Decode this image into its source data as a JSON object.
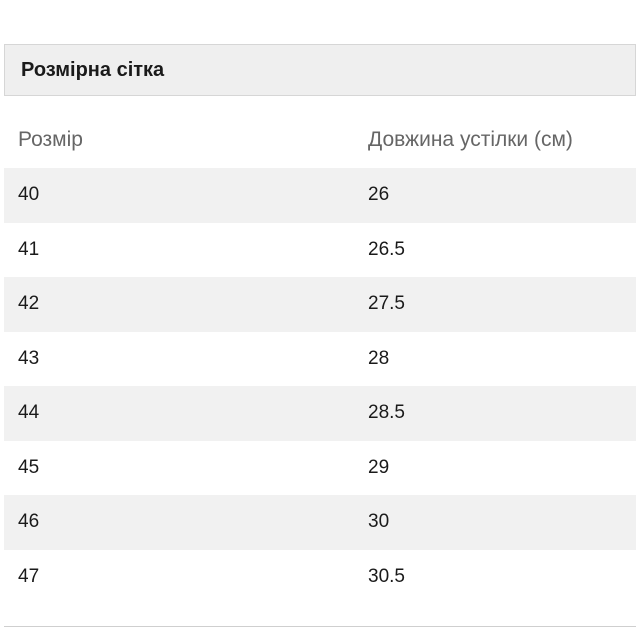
{
  "panel": {
    "title": "Розмірна сітка"
  },
  "table": {
    "headers": [
      "Розмір",
      "Довжина устілки (см)"
    ],
    "rows": [
      [
        "40",
        "26"
      ],
      [
        "41",
        "26.5"
      ],
      [
        "42",
        "27.5"
      ],
      [
        "43",
        "28"
      ],
      [
        "44",
        "28.5"
      ],
      [
        "45",
        "29"
      ],
      [
        "46",
        "30"
      ],
      [
        "47",
        "30.5"
      ]
    ]
  },
  "colors": {
    "header_bg": "#efefef",
    "row_shade": "#f1f1f1",
    "header_text": "#666666"
  }
}
